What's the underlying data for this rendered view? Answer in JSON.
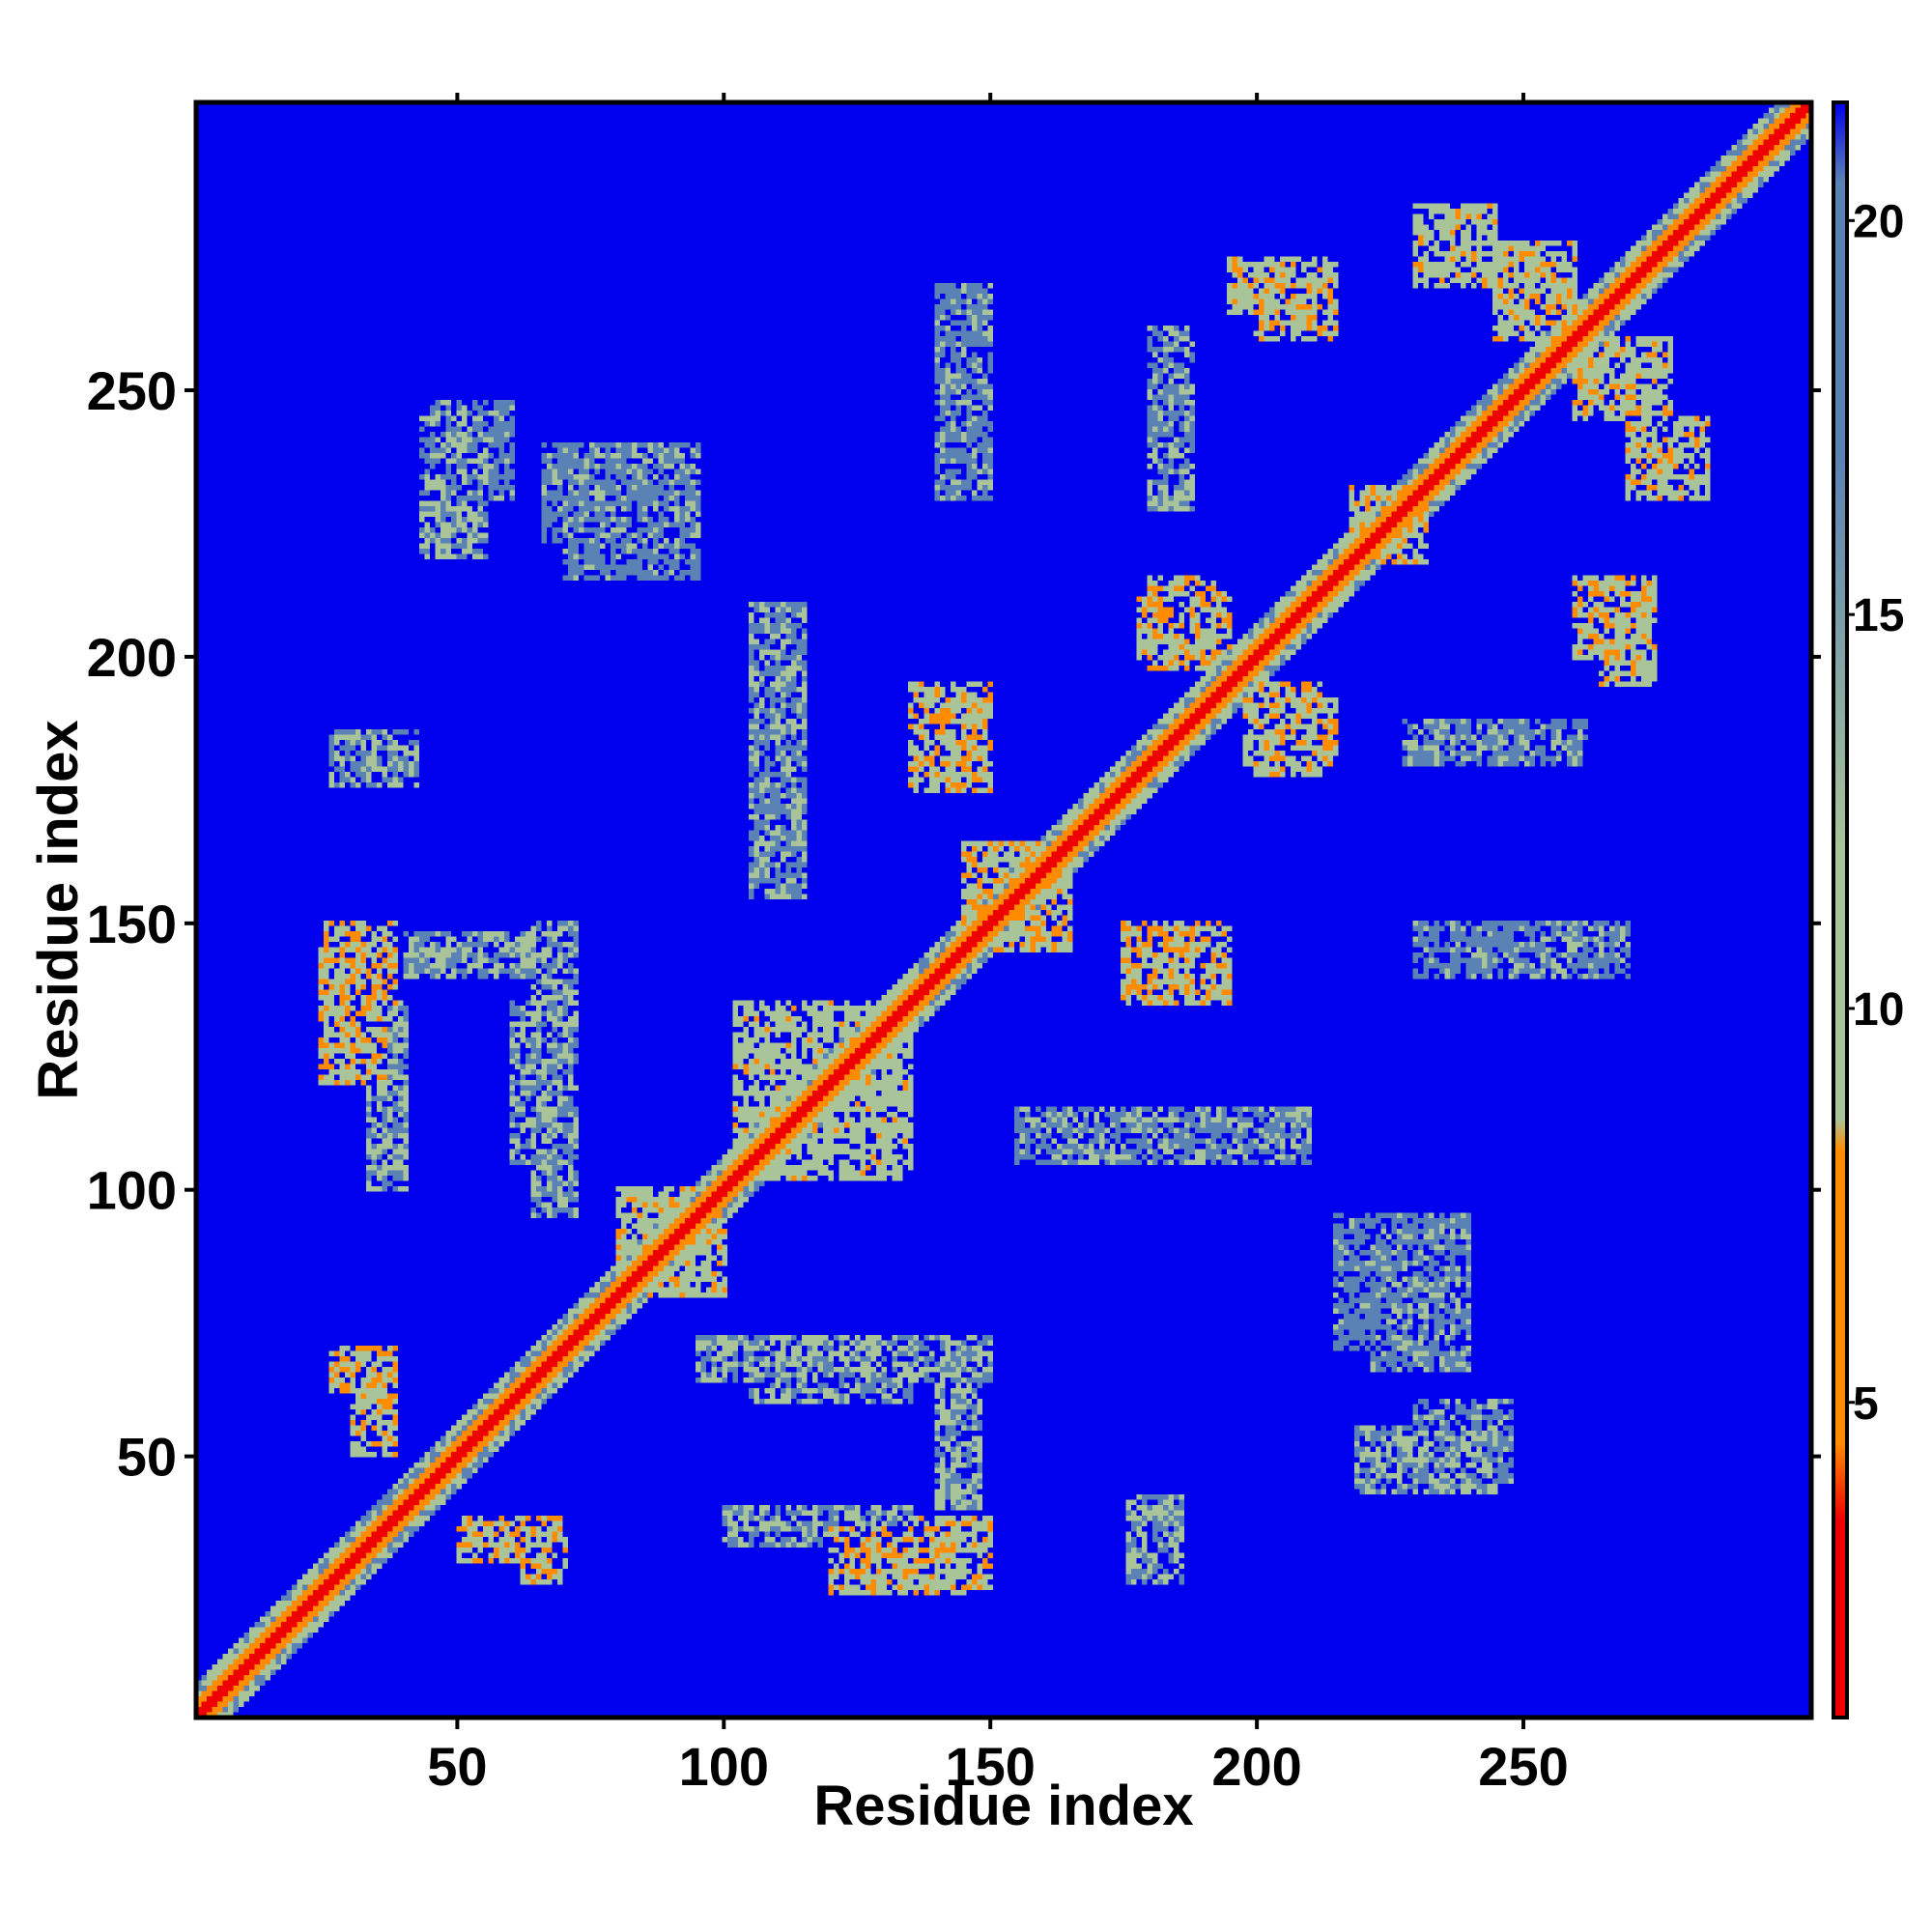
{
  "chart_data": {
    "type": "heatmap",
    "title": "",
    "xlabel": "Residue index",
    "ylabel": "Residue index",
    "n_residues": 304,
    "xlim": [
      1,
      304
    ],
    "ylim": [
      1,
      304
    ],
    "x_ticks": [
      50,
      100,
      150,
      200,
      250
    ],
    "y_ticks": [
      50,
      100,
      150,
      200,
      250
    ],
    "colorbar": {
      "range": [
        1,
        21.5
      ],
      "ticks": [
        5,
        10,
        15,
        20
      ],
      "colors": {
        "near": "#ee0000",
        "mid": "#ff8c00",
        "contact": "#a8c498",
        "far": "#5b82b4",
        "background": "#0000ee"
      }
    },
    "diagonal": "distance 0–4 along residue i = j, red core with orange/green halo",
    "contact_blocks": [
      {
        "x": [
          24,
          36
        ],
        "y": [
          120,
          145
        ],
        "value": 6
      },
      {
        "x": [
          43,
          55
        ],
        "y": [
          219,
          245
        ],
        "value": 9
      },
      {
        "x": [
          66,
          95
        ],
        "y": [
          222,
          240
        ],
        "value": 11
      },
      {
        "x": [
          26,
          42
        ],
        "y": [
          176,
          186
        ],
        "value": 9
      },
      {
        "x": [
          40,
          70
        ],
        "y": [
          140,
          148
        ],
        "value": 9
      },
      {
        "x": [
          33,
          40
        ],
        "y": [
          100,
          135
        ],
        "value": 9
      },
      {
        "x": [
          64,
          72
        ],
        "y": [
          95,
          150
        ],
        "value": 9
      },
      {
        "x": [
          26,
          38
        ],
        "y": [
          62,
          70
        ],
        "value": 6
      },
      {
        "x": [
          50,
          70
        ],
        "y": [
          30,
          38
        ],
        "value": 6
      },
      {
        "x": [
          85,
          100
        ],
        "y": [
          80,
          95
        ],
        "value": 7
      },
      {
        "x": [
          102,
          132
        ],
        "y": [
          105,
          135
        ],
        "value": 8
      },
      {
        "x": [
          105,
          135
        ],
        "y": [
          60,
          70
        ],
        "value": 9
      },
      {
        "x": [
          135,
          150
        ],
        "y": [
          25,
          38
        ],
        "value": 6
      },
      {
        "x": [
          135,
          150
        ],
        "y": [
          175,
          192
        ],
        "value": 6
      },
      {
        "x": [
          150,
          165
        ],
        "y": [
          145,
          162
        ],
        "value": 6
      },
      {
        "x": [
          155,
          210
        ],
        "y": [
          105,
          115
        ],
        "value": 10
      },
      {
        "x": [
          175,
          195
        ],
        "y": [
          135,
          150
        ],
        "value": 6
      },
      {
        "x": [
          178,
          195
        ],
        "y": [
          200,
          212
        ],
        "value": 6
      },
      {
        "x": [
          198,
          215
        ],
        "y": [
          180,
          192
        ],
        "value": 6
      },
      {
        "x": [
          200,
          215
        ],
        "y": [
          260,
          270
        ],
        "value": 6
      },
      {
        "x": [
          218,
          230
        ],
        "y": [
          220,
          232
        ],
        "value": 6
      },
      {
        "x": [
          230,
          245
        ],
        "y": [
          270,
          285
        ],
        "value": 7
      },
      {
        "x": [
          260,
          278
        ],
        "y": [
          245,
          260
        ],
        "value": 7
      },
      {
        "x": [
          265,
          275
        ],
        "y": [
          195,
          215
        ],
        "value": 7
      },
      {
        "x": [
          228,
          262
        ],
        "y": [
          180,
          188
        ],
        "value": 10
      },
      {
        "x": [
          230,
          270
        ],
        "y": [
          140,
          150
        ],
        "value": 11
      },
      {
        "x": [
          230,
          248
        ],
        "y": [
          45,
          60
        ],
        "value": 11
      },
      {
        "x": [
          215,
          240
        ],
        "y": [
          70,
          95
        ],
        "value": 12
      }
    ]
  }
}
